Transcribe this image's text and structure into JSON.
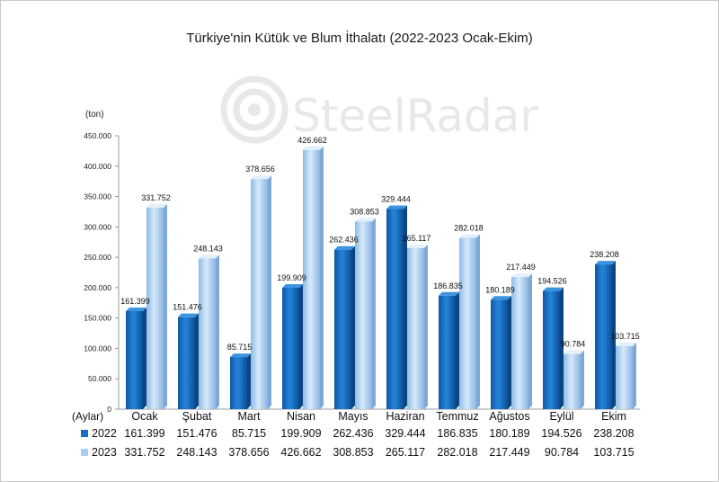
{
  "chart_data": {
    "type": "bar",
    "title": "Türkiye'nin Kütük ve Blum İthalatı (2022-2023 Ocak-Ekim)",
    "ylabel": "(ton)",
    "xlabel": "(Aylar)",
    "ylim": [
      0,
      450000
    ],
    "yticks": [
      "0",
      "50.000",
      "100.000",
      "150.000",
      "200.000",
      "250.000",
      "300.000",
      "350.000",
      "400.000",
      "450.000"
    ],
    "categories": [
      "Ocak",
      "Şubat",
      "Mart",
      "Nisan",
      "Mayıs",
      "Haziran",
      "Temmuz",
      "Ağustos",
      "Eylül",
      "Ekim"
    ],
    "series": [
      {
        "name": "2022",
        "color": "#1a6fc4",
        "values": [
          161399,
          151476,
          85715,
          199909,
          262436,
          329444,
          186835,
          180189,
          194526,
          238208
        ],
        "labels": [
          "161.399",
          "151.476",
          "85.715",
          "199.909",
          "262.436",
          "329.444",
          "186.835",
          "180.189",
          "194.526",
          "238.208"
        ]
      },
      {
        "name": "2023",
        "color": "#a9cdf0",
        "values": [
          331752,
          248143,
          378656,
          426662,
          308853,
          265117,
          282018,
          217449,
          90784,
          103715
        ],
        "labels": [
          "331.752",
          "248.143",
          "378.656",
          "426.662",
          "308.853",
          "265.117",
          "282.018",
          "217.449",
          "90.784",
          "103.715"
        ]
      }
    ],
    "legend": "table-below",
    "grid": false
  },
  "watermark": "SteelRadar"
}
